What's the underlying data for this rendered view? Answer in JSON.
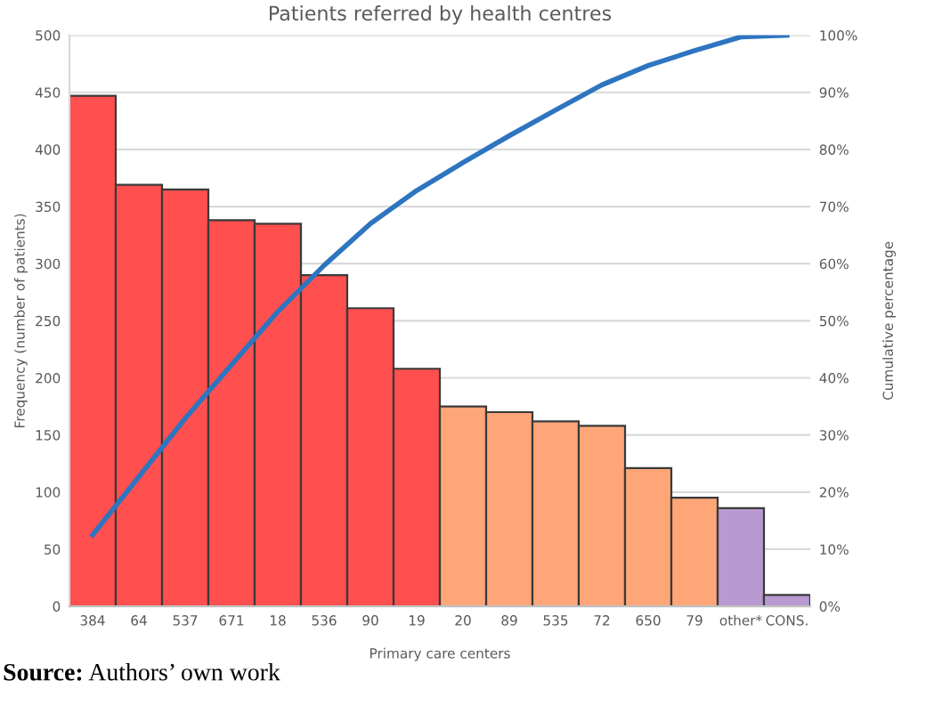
{
  "chart_data": {
    "type": "bar",
    "title": "Patients referred by health centres",
    "xlabel": "Primary care centers",
    "ylabel": "Frequency (number of patients)",
    "y2label": "Cumulative percentage",
    "categories": [
      "384",
      "64",
      "537",
      "671",
      "18",
      "536",
      "90",
      "19",
      "20",
      "89",
      "535",
      "72",
      "650",
      "79",
      "other*",
      "CONS."
    ],
    "series": [
      {
        "colors": [
          "#ff4f4f",
          "#ff4f4f",
          "#ff4f4f",
          "#ff4f4f",
          "#ff4f4f",
          "#ff4f4f",
          "#ff4f4f",
          "#ff4f4f",
          "#ffa678",
          "#ffa678",
          "#ffa678",
          "#ffa678",
          "#ffa678",
          "#ffa678",
          "#b89ad0",
          "#b89ad0"
        ],
        "values": [
          447,
          369,
          365,
          338,
          335,
          290,
          261,
          208,
          175,
          170,
          162,
          158,
          121,
          95,
          86,
          10
        ]
      },
      {
        "type": "line",
        "axis": "y2",
        "color": "#2e75c0",
        "values": [
          12.5,
          22.7,
          32.9,
          42.3,
          51.6,
          59.7,
          67.0,
          72.8,
          77.7,
          82.4,
          86.9,
          91.3,
          94.7,
          97.3,
          99.7,
          100
        ]
      }
    ],
    "ylim": [
      0,
      500
    ],
    "yticks": [
      0,
      50,
      100,
      150,
      200,
      250,
      300,
      350,
      400,
      450,
      500
    ],
    "y2lim": [
      0,
      100
    ],
    "y2ticks": [
      {
        "value": 0,
        "label": "0%"
      },
      {
        "value": 10,
        "label": "10%"
      },
      {
        "value": 20,
        "label": "20%"
      },
      {
        "value": 30,
        "label": "30%"
      },
      {
        "value": 40,
        "label": "40%"
      },
      {
        "value": 50,
        "label": "50%"
      },
      {
        "value": 60,
        "label": "60%"
      },
      {
        "value": 70,
        "label": "70%"
      },
      {
        "value": 80,
        "label": "80%"
      },
      {
        "value": 90,
        "label": "90%"
      },
      {
        "value": 100,
        "label": "100%"
      }
    ],
    "grid": "y",
    "legend": false,
    "marker": "none",
    "line_style": "solid",
    "annotations": [
      "Source: Authors’ own work"
    ]
  }
}
